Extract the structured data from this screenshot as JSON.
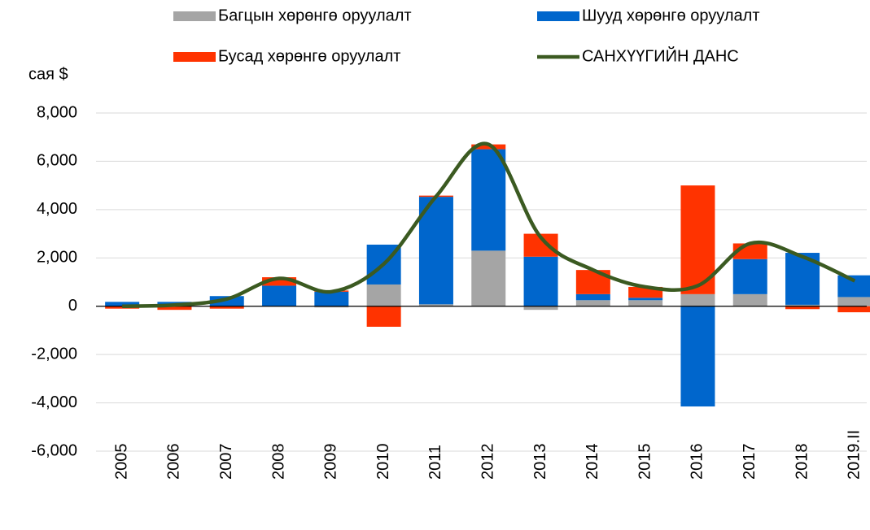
{
  "chart_data": {
    "type": "bar",
    "y_label": "сая $",
    "categories": [
      "2005",
      "2006",
      "2007",
      "2008",
      "2009",
      "2010",
      "2011",
      "2012",
      "2013",
      "2014",
      "2015",
      "2016",
      "2017",
      "2018",
      "2019.II"
    ],
    "series": [
      {
        "name": "Багцын хөрөнгө оруулалт",
        "type": "bar",
        "color": "#a5a5a5",
        "values": [
          0,
          0,
          0,
          0,
          -50,
          900,
          80,
          2300,
          -150,
          250,
          250,
          500,
          500,
          60,
          380
        ]
      },
      {
        "name": "Шууд хөрөнгө оруулалт",
        "type": "bar",
        "color": "#0066cc",
        "values": [
          180,
          180,
          420,
          850,
          600,
          1650,
          4450,
          4200,
          2050,
          250,
          100,
          -4150,
          1450,
          2150,
          900
        ]
      },
      {
        "name": "Бусад хөрөнгө оруулалт",
        "type": "bar",
        "color": "#ff3300",
        "values": [
          -100,
          -150,
          -100,
          350,
          50,
          -850,
          50,
          200,
          950,
          1000,
          450,
          4500,
          650,
          -120,
          -250
        ]
      },
      {
        "name": "САНХҮҮГИЙН ДАНС",
        "type": "line",
        "color": "#3b5a21",
        "values": [
          0,
          50,
          300,
          1150,
          600,
          1750,
          4550,
          6700,
          2850,
          1500,
          800,
          850,
          2600,
          2050,
          1050
        ]
      }
    ],
    "ylim": [
      -6000,
      8000
    ],
    "yticks": [
      {
        "value": -6000,
        "label": "-6,000"
      },
      {
        "value": -4000,
        "label": "-4,000"
      },
      {
        "value": -2000,
        "label": "-2,000"
      },
      0,
      {
        "value": 2000,
        "label": "2,000"
      },
      {
        "value": 4000,
        "label": "4,000"
      },
      {
        "value": 6000,
        "label": "6,000"
      },
      {
        "value": 8000,
        "label": "8,000"
      }
    ],
    "grid": true,
    "stacked": true
  }
}
